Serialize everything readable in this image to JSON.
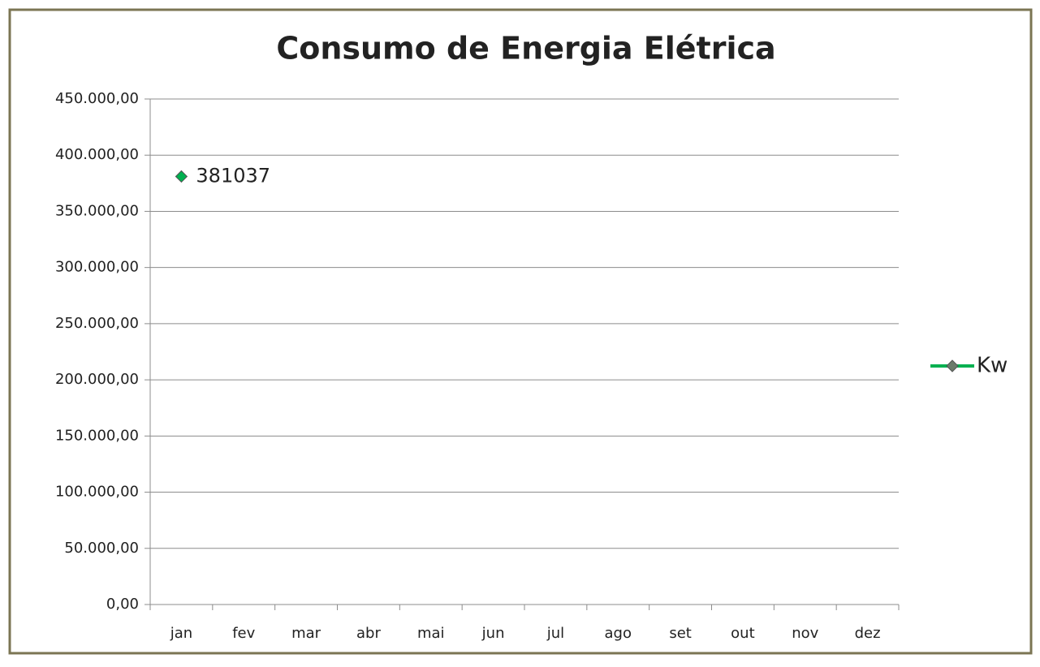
{
  "chart_data": {
    "type": "line",
    "title": "Consumo de Energia Elétrica",
    "categories": [
      "jan",
      "fev",
      "mar",
      "abr",
      "mai",
      "jun",
      "jul",
      "ago",
      "set",
      "out",
      "nov",
      "dez"
    ],
    "series": [
      {
        "name": "Kw",
        "color": "#00b050",
        "values": [
          381037,
          null,
          null,
          null,
          null,
          null,
          null,
          null,
          null,
          null,
          null,
          null
        ]
      }
    ],
    "ylim": [
      0,
      450000
    ],
    "yticks": [
      {
        "value": 0,
        "label": "0,00"
      },
      {
        "value": 50000,
        "label": "50.000,00"
      },
      {
        "value": 100000,
        "label": "100.000,00"
      },
      {
        "value": 150000,
        "label": "150.000,00"
      },
      {
        "value": 200000,
        "label": "200.000,00"
      },
      {
        "value": 250000,
        "label": "250.000,00"
      },
      {
        "value": 300000,
        "label": "300.000,00"
      },
      {
        "value": 350000,
        "label": "350.000,00"
      },
      {
        "value": 400000,
        "label": "400.000,00"
      },
      {
        "value": 450000,
        "label": "450.000,00"
      }
    ],
    "grid": true,
    "legend": "right"
  }
}
